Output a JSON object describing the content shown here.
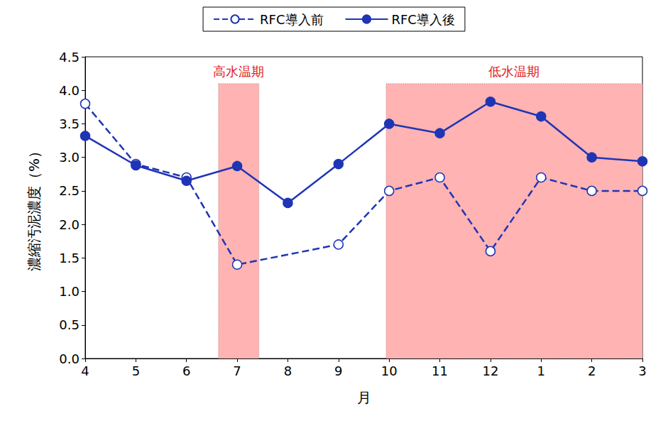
{
  "chart_data": {
    "type": "line",
    "x_label": "月",
    "y_label": "濃縮汚泥濃度（%）",
    "categories": [
      "4",
      "5",
      "6",
      "7",
      "8",
      "9",
      "10",
      "11",
      "12",
      "1",
      "2",
      "3"
    ],
    "series": [
      {
        "name": "RFC導入前",
        "color": "#1f35b5",
        "line_style": "dashed",
        "marker": "open_circle",
        "values": [
          3.8,
          2.9,
          2.7,
          1.4,
          null,
          1.7,
          2.5,
          2.7,
          1.6,
          2.7,
          2.5,
          2.5
        ]
      },
      {
        "name": "RFC導入後",
        "color": "#1f35b5",
        "line_style": "solid",
        "marker": "circle",
        "values": [
          3.32,
          2.88,
          2.65,
          2.87,
          2.32,
          2.9,
          3.5,
          3.36,
          3.83,
          3.61,
          3.0,
          2.94
        ]
      }
    ],
    "ylim": [
      0,
      4.5
    ],
    "yticks": [
      {
        "value": 0,
        "label": "0.0"
      },
      0.5,
      {
        "value": 1,
        "label": "1.0"
      },
      1.5,
      {
        "value": 2,
        "label": "2.0"
      },
      2.5,
      {
        "value": 3,
        "label": "3.0"
      },
      3.5,
      {
        "value": 4,
        "label": "4.0"
      },
      4.5
    ],
    "grid": false,
    "legend": "top",
    "annotations": [
      {
        "text": "高水温期",
        "from": "7",
        "to": "7",
        "ymax": 4.1,
        "color": "#ffb3b3"
      },
      {
        "text": "低水温期",
        "from": "10",
        "to": "3",
        "ymax": 4.1,
        "color": "#ffb3b3"
      }
    ]
  }
}
